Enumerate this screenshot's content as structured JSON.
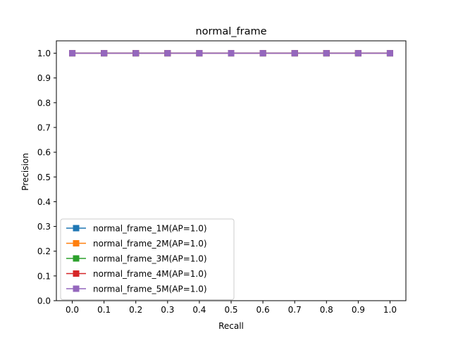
{
  "chart_data": {
    "type": "line",
    "title": "normal_frame",
    "xlabel": "Recall",
    "ylabel": "Precision",
    "xlim": [
      -0.05,
      1.05
    ],
    "ylim": [
      0.0,
      1.05
    ],
    "xticks": [
      "0.0",
      "0.1",
      "0.2",
      "0.3",
      "0.4",
      "0.5",
      "0.6",
      "0.7",
      "0.8",
      "0.9",
      "1.0"
    ],
    "yticks": [
      "0.0",
      "0.1",
      "0.2",
      "0.3",
      "0.4",
      "0.5",
      "0.6",
      "0.7",
      "0.8",
      "0.9",
      "1.0"
    ],
    "grid": false,
    "legend_position": "lower-left",
    "marker": "square",
    "x": [
      0.0,
      0.1,
      0.2,
      0.3,
      0.4,
      0.5,
      0.6,
      0.7,
      0.8,
      0.9,
      1.0
    ],
    "series": [
      {
        "name": "normal_frame_1M(AP=1.0)",
        "color": "#1f77b4",
        "values": [
          1.0,
          1.0,
          1.0,
          1.0,
          1.0,
          1.0,
          1.0,
          1.0,
          1.0,
          1.0,
          1.0
        ]
      },
      {
        "name": "normal_frame_2M(AP=1.0)",
        "color": "#ff7f0e",
        "values": [
          1.0,
          1.0,
          1.0,
          1.0,
          1.0,
          1.0,
          1.0,
          1.0,
          1.0,
          1.0,
          1.0
        ]
      },
      {
        "name": "normal_frame_3M(AP=1.0)",
        "color": "#2ca02c",
        "values": [
          1.0,
          1.0,
          1.0,
          1.0,
          1.0,
          1.0,
          1.0,
          1.0,
          1.0,
          1.0,
          1.0
        ]
      },
      {
        "name": "normal_frame_4M(AP=1.0)",
        "color": "#d62728",
        "values": [
          1.0,
          1.0,
          1.0,
          1.0,
          1.0,
          1.0,
          1.0,
          1.0,
          1.0,
          1.0,
          1.0
        ]
      },
      {
        "name": "normal_frame_5M(AP=1.0)",
        "color": "#9467bd",
        "values": [
          1.0,
          1.0,
          1.0,
          1.0,
          1.0,
          1.0,
          1.0,
          1.0,
          1.0,
          1.0,
          1.0
        ]
      }
    ]
  }
}
